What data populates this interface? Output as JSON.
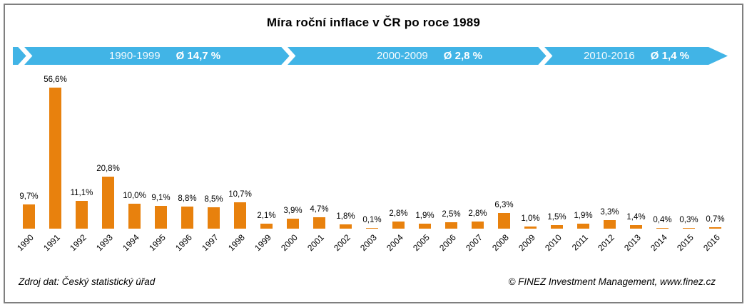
{
  "title": "Míra roční inflace v ČR po roce 1989",
  "timeline": {
    "color": "#41B4E6",
    "segments": [
      {
        "range": "1990-1999",
        "avg": "Ø 14,7 %"
      },
      {
        "range": "2000-2009",
        "avg": "Ø 2,8 %"
      },
      {
        "range": "2010-2016",
        "avg": "Ø 1,4 %"
      }
    ]
  },
  "chart_data": {
    "type": "bar",
    "title": "Míra roční inflace v ČR po roce 1989",
    "categories": [
      "1990",
      "1991",
      "1992",
      "1993",
      "1994",
      "1995",
      "1996",
      "1997",
      "1998",
      "1999",
      "2000",
      "2001",
      "2002",
      "2003",
      "2004",
      "2005",
      "2006",
      "2007",
      "2008",
      "2009",
      "2010",
      "2011",
      "2012",
      "2013",
      "2014",
      "2015",
      "2016"
    ],
    "values": [
      9.7,
      56.6,
      11.1,
      20.8,
      10.0,
      9.1,
      8.8,
      8.5,
      10.7,
      2.1,
      3.9,
      4.7,
      1.8,
      0.1,
      2.8,
      1.9,
      2.5,
      2.8,
      6.3,
      1.0,
      1.5,
      1.9,
      3.3,
      1.4,
      0.4,
      0.3,
      0.7
    ],
    "value_labels": [
      "9,7%",
      "56,6%",
      "11,1%",
      "20,8%",
      "10,0%",
      "9,1%",
      "8,8%",
      "8,5%",
      "10,7%",
      "2,1%",
      "3,9%",
      "4,7%",
      "1,8%",
      "0,1%",
      "2,8%",
      "1,9%",
      "2,5%",
      "2,8%",
      "6,3%",
      "1,0%",
      "1,5%",
      "1,9%",
      "3,3%",
      "1,4%",
      "0,4%",
      "0,3%",
      "0,7%"
    ],
    "xlabel": "",
    "ylabel": "",
    "ylim": [
      0,
      60
    ],
    "bar_color": "#E8810D",
    "grid": false,
    "legend": false,
    "x_tick_rotation": 45
  },
  "footer": {
    "source": "Zdroj dat: Český statistický úřad",
    "copyright": "© FINEZ Investment Management, www.finez.cz"
  }
}
